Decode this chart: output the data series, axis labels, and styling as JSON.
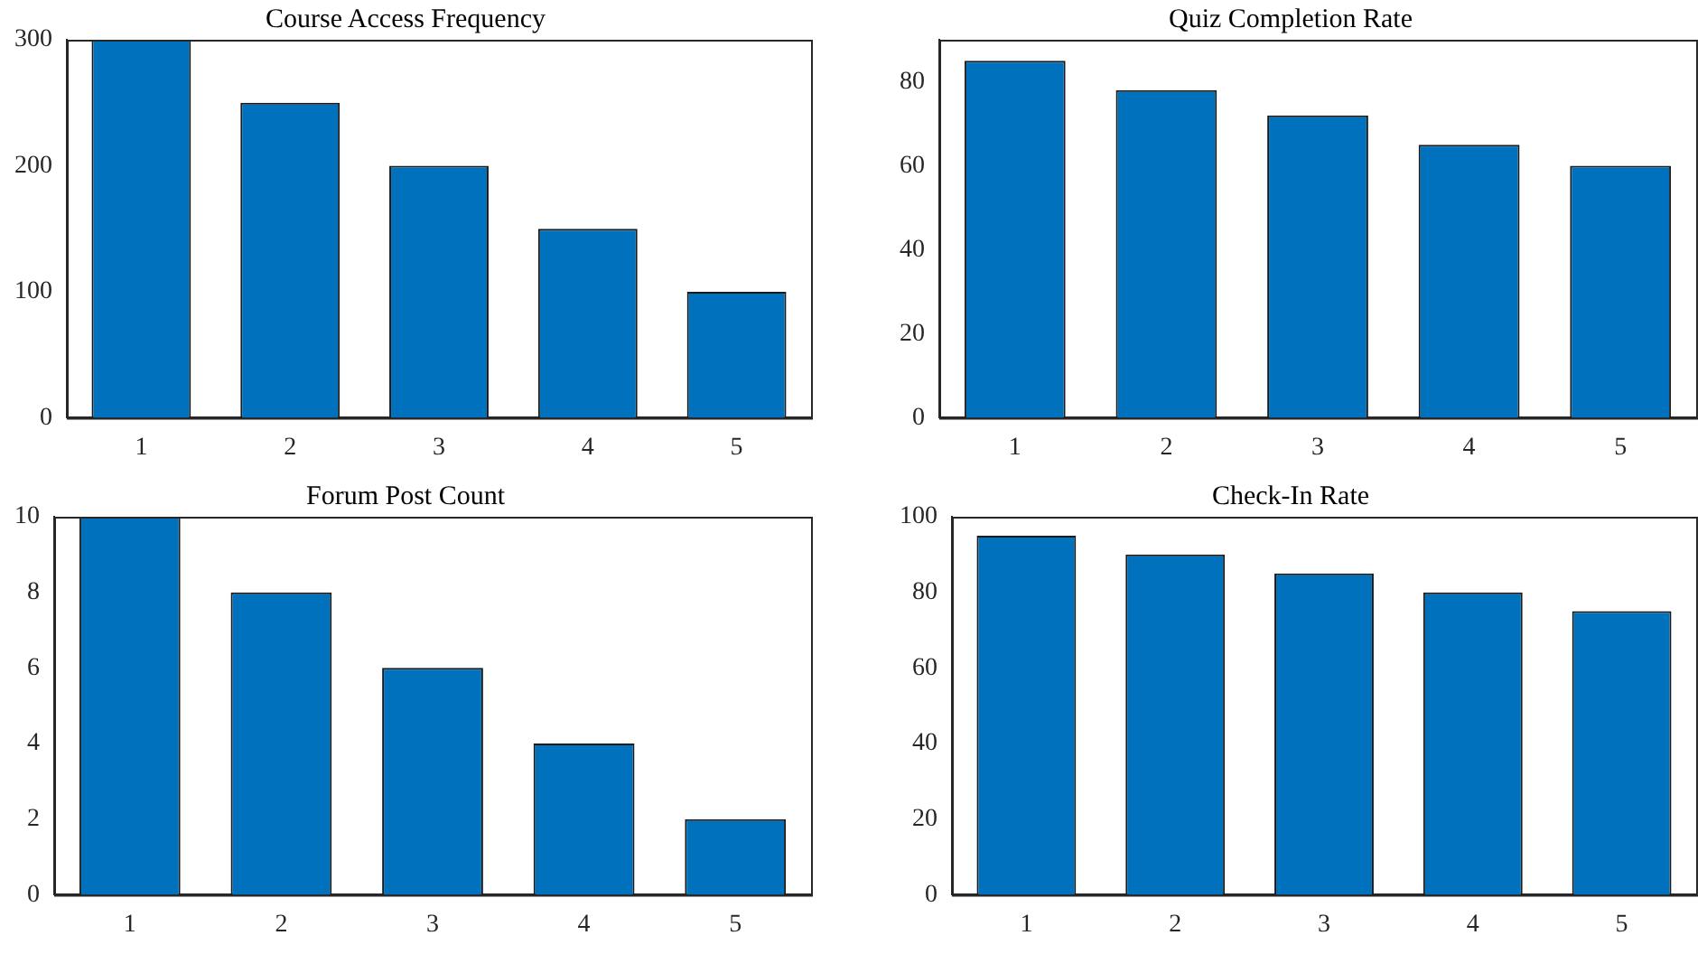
{
  "chart_data": [
    {
      "type": "bar",
      "title": "Course Access Frequency",
      "categories": [
        "1",
        "2",
        "3",
        "4",
        "5"
      ],
      "values": [
        300,
        250,
        200,
        150,
        100
      ],
      "color": "#0072bd",
      "ylim": [
        0,
        300
      ],
      "yticks": [
        0,
        100,
        200,
        300
      ],
      "grid": false,
      "legend": false
    },
    {
      "type": "bar",
      "title": "Quiz Completion Rate",
      "categories": [
        "1",
        "2",
        "3",
        "4",
        "5"
      ],
      "values": [
        85,
        78,
        72,
        65,
        60
      ],
      "color": "#0072bd",
      "ylim": [
        0,
        90
      ],
      "yticks": [
        0,
        20,
        40,
        60,
        80
      ],
      "grid": false,
      "legend": false
    },
    {
      "type": "bar",
      "title": "Forum Post Count",
      "categories": [
        "1",
        "2",
        "3",
        "4",
        "5"
      ],
      "values": [
        10,
        8,
        6,
        4,
        2
      ],
      "color": "#0072bd",
      "ylim": [
        0,
        10
      ],
      "yticks": [
        0,
        2,
        4,
        6,
        8,
        10
      ],
      "grid": false,
      "legend": false
    },
    {
      "type": "bar",
      "title": "Check-In Rate",
      "categories": [
        "1",
        "2",
        "3",
        "4",
        "5"
      ],
      "values": [
        95,
        90,
        85,
        80,
        75
      ],
      "color": "#0072bd",
      "ylim": [
        0,
        100
      ],
      "yticks": [
        0,
        20,
        40,
        60,
        80,
        100
      ],
      "grid": false,
      "legend": false
    }
  ]
}
